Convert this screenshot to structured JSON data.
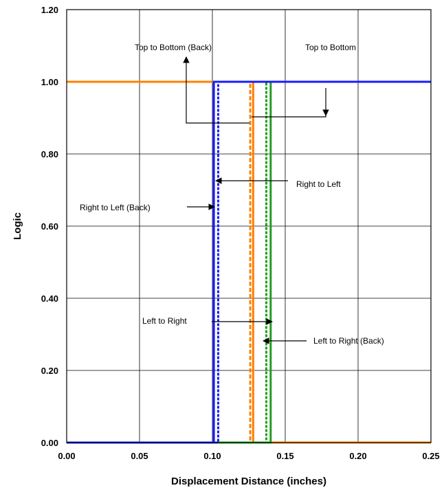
{
  "chart_data": {
    "type": "line",
    "title": "",
    "xlabel": "Displacement Distance (inches)",
    "ylabel": "Logic",
    "xlim": [
      0,
      0.25
    ],
    "ylim": [
      0,
      1.2
    ],
    "xticks": [
      0,
      0.05,
      0.1,
      0.15,
      0.2,
      0.25
    ],
    "xtick_labels": [
      "0.00",
      "0.05",
      "0.10",
      "0.15",
      "0.20",
      "0.25"
    ],
    "yticks": [
      0,
      0.2,
      0.4,
      0.6,
      0.8,
      1.0,
      1.2
    ],
    "ytick_labels": [
      "0.00",
      "0.20",
      "0.40",
      "0.60",
      "0.80",
      "1.00",
      "1.20"
    ],
    "grid": true,
    "legend": "none",
    "series": [
      {
        "color": "#ff8000",
        "dash": "dashed",
        "x": [
          0,
          0.126,
          0.126,
          0.25
        ],
        "y": [
          1,
          1,
          0,
          0
        ]
      },
      {
        "color": "#ff8000",
        "dash": "solid",
        "x": [
          0,
          0.128,
          0.128,
          0.25
        ],
        "y": [
          1,
          1,
          0,
          0
        ]
      },
      {
        "color": "#1f9d1f",
        "dash": "dotted",
        "x": [
          0,
          0.137,
          0.137,
          0.25
        ],
        "y": [
          0,
          0,
          1,
          1
        ]
      },
      {
        "color": "#1f9d1f",
        "dash": "solid",
        "x": [
          0,
          0.14,
          0.14,
          0.25
        ],
        "y": [
          0,
          0,
          1,
          1
        ]
      },
      {
        "color": "#1a1aff",
        "dash": "dotted",
        "x": [
          0,
          0.104,
          0.104,
          0.25
        ],
        "y": [
          0,
          0,
          1,
          1
        ]
      },
      {
        "color": "#1a1aff",
        "dash": "solid",
        "x": [
          0,
          0.101,
          0.101,
          0.25
        ],
        "y": [
          0,
          0,
          1,
          1
        ]
      }
    ],
    "annotations": [
      {
        "text": "Top to Bottom (Back)"
      },
      {
        "text": "Top to Bottom"
      },
      {
        "text": "Right to Left"
      },
      {
        "text": "Right to Left  (Back)"
      },
      {
        "text": "Left to Right"
      },
      {
        "text": "Left to Right (Back)"
      }
    ]
  }
}
